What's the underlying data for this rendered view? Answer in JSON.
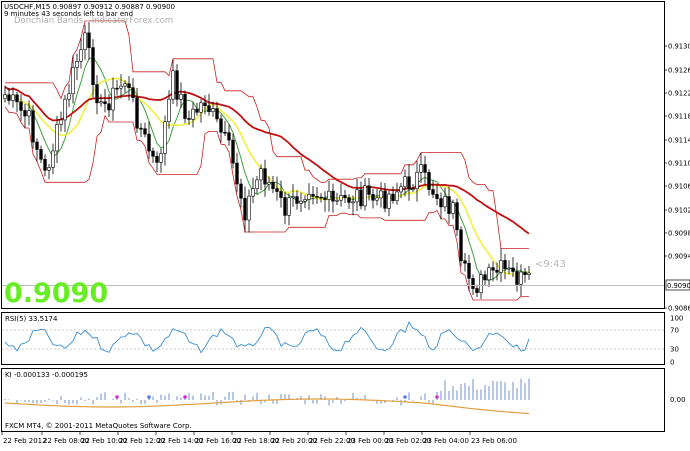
{
  "main": {
    "symbol_line": "USDCHF,M15  0.90897 0.90912 0.90887 0.90900",
    "countdown": "9 minutes 43 seconds left to bar end",
    "indicator_name": "Donchian Bands - IndicatorForex.com",
    "big_price": "0.9090",
    "timer": "<9:43",
    "current_price_tag": "0.90900",
    "price_ticks": [
      "0.91305",
      "0.91265",
      "0.91225",
      "0.91185",
      "0.91145",
      "0.91105",
      "0.91065",
      "0.91025",
      "0.90985",
      "0.90945",
      "0.90900",
      "0.90865"
    ]
  },
  "rsi": {
    "label": "RSI(5) 33.5174",
    "ticks": [
      "100",
      "70",
      "30",
      "0"
    ]
  },
  "ki": {
    "label": "KI -0.000133 -0.000195",
    "zero_tick": "0.00",
    "copyright": "FXCM MT4, © 2001-2011 MetaQuotes Software Corp."
  },
  "time_axis": [
    "22 Feb 2012",
    "22 Feb 08:00",
    "22 Feb 10:00",
    "22 Feb 12:00",
    "22 Feb 14:00",
    "22 Feb 16:00",
    "22 Feb 18:00",
    "22 Feb 20:00",
    "22 Feb 22:00",
    "23 Feb 00:00",
    "23 Feb 02:00",
    "23 Feb 04:00",
    "23 Feb 06:00"
  ],
  "colors": {
    "background": "#ffffff",
    "candle": "#000000",
    "donchian": "#cc2020",
    "ma_fast": "#f0f040",
    "ma_mid": "#40a040",
    "ma_slow": "#c01010",
    "rsi_line": "#3a8fd0",
    "ki_bars": "#7090c0",
    "ki_signal": "#e0a040",
    "big_price": "#66ee22"
  },
  "chart_data": {
    "type": "candlestick",
    "symbol": "USDCHF",
    "timeframe": "M15",
    "last_bar": {
      "open": 0.90897,
      "high": 0.90912,
      "low": 0.90887,
      "close": 0.909
    },
    "price_range": [
      0.90845,
      0.91345
    ],
    "rsi": {
      "period": 5,
      "value": 33.5174,
      "levels": [
        70,
        30
      ],
      "range": [
        0,
        100
      ]
    },
    "ki": {
      "values": [
        -0.000133,
        -0.000195
      ]
    }
  }
}
